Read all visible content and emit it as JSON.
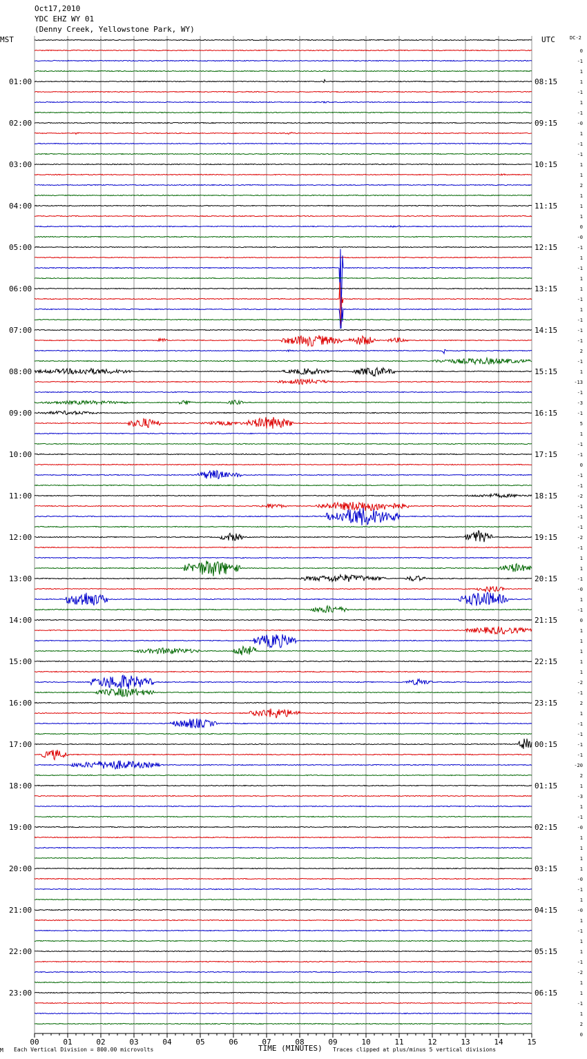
{
  "header": {
    "date": "Oct17,2010",
    "station": "YDC EHZ WY 01",
    "location": "(Denny Creek, Yellowstone Park, WY)"
  },
  "left_axis_label": "MST",
  "right_axis_label": "UTC",
  "dc_label": "DC",
  "dc_label_suffix": "-2",
  "footer": {
    "scale_note": "Each Vertical Division =  800.00 microvolts",
    "corner_mark": "M",
    "clip_note": "Traces clipped at plus/minus 5 vertical divisions"
  },
  "colors": {
    "c0": "#000000",
    "c1": "#dd0000",
    "c2": "#0000cc",
    "c3": "#006600",
    "grid": "#909090"
  },
  "chart_data": {
    "type": "line",
    "xlabel": "TIME (MINUTES)",
    "x_ticks": [
      "00",
      "01",
      "02",
      "03",
      "04",
      "05",
      "06",
      "07",
      "08",
      "09",
      "10",
      "11",
      "12",
      "13",
      "14",
      "15"
    ],
    "xlim": [
      0,
      15
    ],
    "trace_minutes": 15,
    "traces_per_hour": 4,
    "left_hour_labels": [
      "",
      "01:00",
      "02:00",
      "03:00",
      "04:00",
      "05:00",
      "06:00",
      "07:00",
      "08:00",
      "09:00",
      "10:00",
      "11:00",
      "12:00",
      "13:00",
      "14:00",
      "15:00",
      "16:00",
      "17:00",
      "18:00",
      "19:00",
      "20:00",
      "21:00",
      "22:00",
      "23:00"
    ],
    "right_hour_labels": [
      "",
      "08:15",
      "09:15",
      "10:15",
      "11:15",
      "12:15",
      "13:15",
      "14:15",
      "15:15",
      "16:15",
      "17:15",
      "18:15",
      "19:15",
      "20:15",
      "21:15",
      "22:15",
      "23:15",
      "00:15",
      "01:15",
      "02:15",
      "03:15",
      "04:15",
      "05:15",
      "06:15"
    ],
    "dc_offsets": [
      "0",
      "-1",
      "1",
      "1",
      "-1",
      "1",
      "-1",
      "-0",
      "1",
      "-1",
      "-1",
      "1",
      "1",
      "2",
      "1",
      "1",
      "1",
      "0",
      "-0",
      "-1",
      "1",
      "-1",
      "1",
      "1",
      "-1",
      "1",
      "-1",
      "-1",
      "-1",
      "2",
      "-1",
      "1",
      "-13",
      "-1",
      "-3",
      "-1",
      "5",
      "1",
      "-1",
      "-1",
      "0",
      "-1",
      "-1",
      "-2",
      "-1",
      "-1",
      "-1",
      "-2",
      "-1",
      "1",
      "1",
      "-1",
      "-0",
      "1",
      "-1",
      "0",
      "1",
      "1",
      "1",
      "1",
      "1",
      "-2",
      "-1",
      "2",
      "1",
      "-1",
      "-1",
      "-1",
      "-1",
      "-20",
      "2",
      "1",
      "-3",
      "1",
      "-1",
      "-0",
      "1",
      "1",
      "1",
      "1",
      "-0",
      "-1",
      "1",
      "-0",
      "1",
      "-1",
      "1",
      "1",
      "-1",
      "-2",
      "1",
      "1",
      "-1",
      "1",
      "2",
      "0"
    ],
    "events": [
      {
        "trace": 4,
        "start": 8.7,
        "end": 8.8,
        "amp": 3
      },
      {
        "trace": 6,
        "start": 8.6,
        "end": 9.0,
        "amp": 1.5
      },
      {
        "trace": 9,
        "start": 1.2,
        "end": 1.35,
        "amp": 2
      },
      {
        "trace": 9,
        "start": 7.4,
        "end": 8.0,
        "amp": 1.5
      },
      {
        "trace": 13,
        "start": 14.0,
        "end": 14.2,
        "amp": 2
      },
      {
        "trace": 18,
        "start": 10.6,
        "end": 11.2,
        "amp": 1.5
      },
      {
        "trace": 22,
        "start": 9.2,
        "end": 9.3,
        "amp": 75
      },
      {
        "trace": 25,
        "start": 9.2,
        "end": 9.3,
        "amp": 75
      },
      {
        "trace": 26,
        "start": 9.2,
        "end": 9.3,
        "amp": 45
      },
      {
        "trace": 30,
        "start": 7.5,
        "end": 7.8,
        "amp": 1.5
      },
      {
        "trace": 29,
        "start": 3.7,
        "end": 4.0,
        "amp": 4
      },
      {
        "trace": 29,
        "start": 7.4,
        "end": 9.3,
        "amp": 9
      },
      {
        "trace": 29,
        "start": 9.5,
        "end": 10.3,
        "amp": 8
      },
      {
        "trace": 29,
        "start": 10.6,
        "end": 11.3,
        "amp": 4
      },
      {
        "trace": 30,
        "start": 12.3,
        "end": 12.4,
        "amp": 6
      },
      {
        "trace": 31,
        "start": 12.0,
        "end": 15.0,
        "amp": 5
      },
      {
        "trace": 32,
        "start": 0.0,
        "end": 3.0,
        "amp": 5
      },
      {
        "trace": 32,
        "start": 7.5,
        "end": 9.0,
        "amp": 5
      },
      {
        "trace": 32,
        "start": 9.6,
        "end": 10.9,
        "amp": 7
      },
      {
        "trace": 33,
        "start": 7.3,
        "end": 9.0,
        "amp": 4
      },
      {
        "trace": 35,
        "start": 0.0,
        "end": 3.0,
        "amp": 3
      },
      {
        "trace": 35,
        "start": 4.3,
        "end": 4.8,
        "amp": 4
      },
      {
        "trace": 35,
        "start": 5.8,
        "end": 6.3,
        "amp": 4
      },
      {
        "trace": 36,
        "start": 0.0,
        "end": 2.0,
        "amp": 3
      },
      {
        "trace": 37,
        "start": 2.8,
        "end": 3.8,
        "amp": 8
      },
      {
        "trace": 37,
        "start": 5.0,
        "end": 6.5,
        "amp": 3
      },
      {
        "trace": 37,
        "start": 6.4,
        "end": 7.8,
        "amp": 10
      },
      {
        "trace": 42,
        "start": 4.9,
        "end": 5.9,
        "amp": 8
      },
      {
        "trace": 42,
        "start": 5.9,
        "end": 6.3,
        "amp": 4
      },
      {
        "trace": 44,
        "start": 13.0,
        "end": 15.0,
        "amp": 3
      },
      {
        "trace": 45,
        "start": 6.8,
        "end": 7.6,
        "amp": 4
      },
      {
        "trace": 45,
        "start": 8.5,
        "end": 11.3,
        "amp": 8
      },
      {
        "trace": 46,
        "start": 8.8,
        "end": 11.0,
        "amp": 14
      },
      {
        "trace": 48,
        "start": 5.6,
        "end": 6.3,
        "amp": 7
      },
      {
        "trace": 48,
        "start": 13.0,
        "end": 13.8,
        "amp": 10
      },
      {
        "trace": 51,
        "start": 4.5,
        "end": 6.2,
        "amp": 13
      },
      {
        "trace": 51,
        "start": 14.0,
        "end": 15.0,
        "amp": 7
      },
      {
        "trace": 52,
        "start": 8.0,
        "end": 10.6,
        "amp": 6
      },
      {
        "trace": 52,
        "start": 11.2,
        "end": 11.8,
        "amp": 5
      },
      {
        "trace": 53,
        "start": 13.3,
        "end": 14.2,
        "amp": 5
      },
      {
        "trace": 54,
        "start": 0.9,
        "end": 2.2,
        "amp": 12
      },
      {
        "trace": 54,
        "start": 12.8,
        "end": 14.3,
        "amp": 12
      },
      {
        "trace": 55,
        "start": 8.3,
        "end": 9.5,
        "amp": 6
      },
      {
        "trace": 57,
        "start": 13.0,
        "end": 15.0,
        "amp": 6
      },
      {
        "trace": 58,
        "start": 6.6,
        "end": 7.9,
        "amp": 12
      },
      {
        "trace": 59,
        "start": 3.0,
        "end": 5.0,
        "amp": 5
      },
      {
        "trace": 59,
        "start": 6.0,
        "end": 6.7,
        "amp": 10
      },
      {
        "trace": 62,
        "start": 1.7,
        "end": 3.6,
        "amp": 12
      },
      {
        "trace": 62,
        "start": 11.2,
        "end": 12.0,
        "amp": 5
      },
      {
        "trace": 63,
        "start": 1.8,
        "end": 3.6,
        "amp": 7
      },
      {
        "trace": 65,
        "start": 6.5,
        "end": 8.0,
        "amp": 8
      },
      {
        "trace": 66,
        "start": 4.1,
        "end": 5.5,
        "amp": 8
      },
      {
        "trace": 68,
        "start": 14.6,
        "end": 15.0,
        "amp": 10
      },
      {
        "trace": 69,
        "start": 0.2,
        "end": 1.0,
        "amp": 8
      },
      {
        "trace": 70,
        "start": 1.1,
        "end": 3.8,
        "amp": 7
      },
      {
        "trace": 83,
        "start": 3.0,
        "end": 3.3,
        "amp": 1.5
      }
    ]
  }
}
